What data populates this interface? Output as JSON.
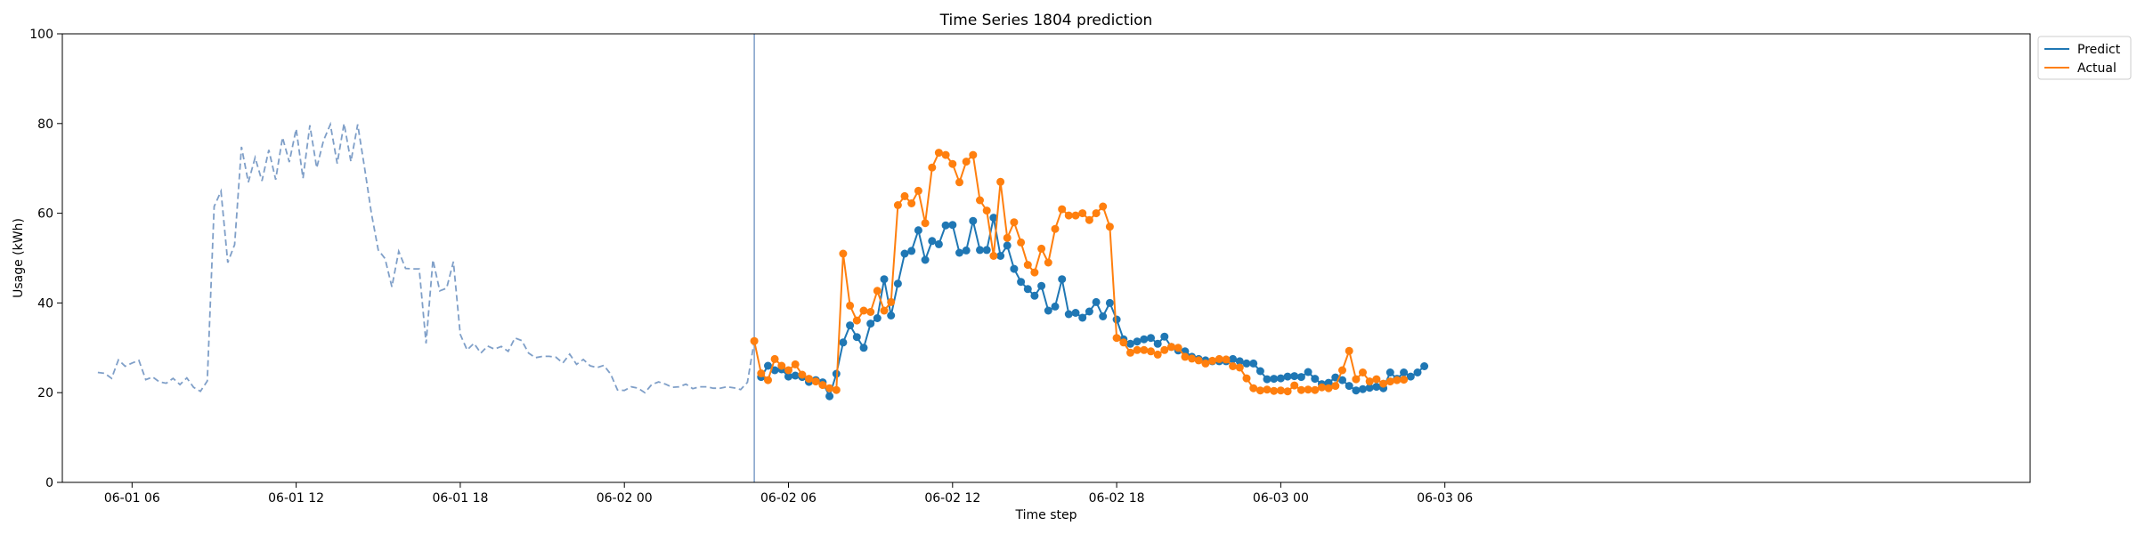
{
  "chart_data": {
    "type": "line",
    "title": "Time Series 1804 prediction",
    "xlabel": "Time step",
    "ylabel": "Usage (kWh)",
    "x_unit": "hours since 06-01 00:00",
    "xlim": [
      3.45,
      75.4
    ],
    "ylim": [
      0,
      100
    ],
    "yticks": [
      0,
      20,
      40,
      60,
      80,
      100
    ],
    "xticks": [
      {
        "label": "06-01 06",
        "value": 6
      },
      {
        "label": "06-01 12",
        "value": 12
      },
      {
        "label": "06-01 18",
        "value": 18
      },
      {
        "label": "06-02 00",
        "value": 24
      },
      {
        "label": "06-02 06",
        "value": 30
      },
      {
        "label": "06-02 12",
        "value": 36
      },
      {
        "label": "06-02 18",
        "value": 42
      },
      {
        "label": "06-03 00",
        "value": 48
      },
      {
        "label": "06-03 06",
        "value": 54
      }
    ],
    "forecast_start": 28.75,
    "legend_position": "upper-right-outside",
    "colors": {
      "history": "#7f9fc8",
      "predict": "#1f77b4",
      "actual": "#ff7f0e",
      "vline": "#7f9fc8"
    },
    "history": {
      "x_start": 4.75,
      "step": 0.25,
      "values": [
        24.5,
        24.3,
        23.2,
        27.3,
        25.9,
        26.6,
        27.2,
        22.9,
        23.5,
        22.4,
        22.1,
        23.2,
        21.8,
        23.3,
        21.2,
        20.3,
        22.6,
        61.5,
        64.9,
        49.0,
        53.0,
        74.8,
        66.9,
        72.4,
        67.2,
        74.1,
        67.5,
        76.9,
        71.4,
        78.8,
        67.8,
        79.6,
        70.1,
        76.2,
        79.8,
        71.1,
        80.0,
        71.5,
        79.8,
        70.2,
        60.0,
        51.8,
        49.9,
        43.6,
        51.5,
        47.7,
        47.6,
        47.6,
        31.0,
        49.6,
        42.7,
        43.3,
        49.2,
        33.0,
        29.5,
        31.0,
        28.8,
        30.4,
        29.7,
        30.3,
        29.2,
        32.2,
        31.6,
        28.8,
        27.8,
        28.1,
        28.1,
        27.9,
        26.6,
        28.6,
        26.3,
        27.4,
        26.0,
        25.6,
        26.1,
        24.1,
        20.6,
        20.5,
        21.3,
        21.0,
        20.0,
        21.8,
        22.4,
        21.9,
        21.2,
        21.3,
        21.9,
        20.9,
        21.3,
        21.3,
        21.0,
        21.0,
        21.3,
        21.1,
        20.7,
        22.3,
        31.5
      ]
    },
    "series": [
      {
        "name": "Predict",
        "x_start": 29.0,
        "step": 0.25,
        "values": [
          23.5,
          26.0,
          25.0,
          25.2,
          23.6,
          23.8,
          23.5,
          22.4,
          22.8,
          22.3,
          19.2,
          24.2,
          31.2,
          35.0,
          32.4,
          30.0,
          35.4,
          36.6,
          45.3,
          37.2,
          44.3,
          51.0,
          51.6,
          56.2,
          49.6,
          53.8,
          53.1,
          57.3,
          57.4,
          51.2,
          51.7,
          58.3,
          51.8,
          51.8,
          59.0,
          50.5,
          52.8,
          47.6,
          44.7,
          43.1,
          41.6,
          43.8,
          38.3,
          39.2,
          45.3,
          37.5,
          37.8,
          36.7,
          38.1,
          40.2,
          37.0,
          40.0,
          36.3,
          31.9,
          30.9,
          31.4,
          31.9,
          32.2,
          30.9,
          32.5,
          30.2,
          29.4,
          29.2,
          28.0,
          27.5,
          27.2,
          27.0,
          27.0,
          27.0,
          27.5,
          27.0,
          26.5,
          26.5,
          24.8,
          23.0,
          23.1,
          23.2,
          23.6,
          23.7,
          23.5,
          24.6,
          23.1,
          21.9,
          22.2,
          23.4,
          22.8,
          21.5,
          20.5,
          20.8,
          21.1,
          21.3,
          21.0,
          24.5,
          23.1,
          24.5,
          23.6,
          24.5,
          25.9
        ]
      },
      {
        "name": "Actual",
        "x_start": 28.75,
        "step": 0.25,
        "values": [
          31.5,
          24.3,
          22.8,
          27.5,
          26.0,
          25.0,
          26.3,
          24.0,
          23.1,
          22.5,
          21.7,
          21.0,
          20.6,
          51.0,
          39.4,
          36.1,
          38.3,
          38.0,
          42.7,
          38.3,
          40.2,
          61.8,
          63.8,
          62.2,
          65.0,
          57.8,
          70.2,
          73.5,
          73.0,
          71.0,
          66.9,
          71.5,
          73.0,
          62.9,
          60.6,
          50.5,
          67.0,
          54.5,
          58.0,
          53.5,
          48.5,
          46.8,
          52.1,
          49.0,
          56.5,
          60.9,
          59.5,
          59.5,
          60.0,
          58.5,
          60.0,
          61.5,
          57.0,
          32.2,
          31.2,
          28.9,
          29.5,
          29.5,
          29.2,
          28.5,
          29.5,
          30.2,
          30.0,
          28.0,
          27.6,
          27.2,
          26.5,
          27.1,
          27.5,
          27.4,
          25.9,
          25.6,
          23.2,
          21.0,
          20.5,
          20.7,
          20.4,
          20.5,
          20.3,
          21.6,
          20.6,
          20.7,
          20.6,
          21.2,
          21.0,
          21.5,
          25.0,
          29.3,
          23.0,
          24.5,
          22.5,
          23.0,
          22.0,
          22.5,
          22.8,
          22.9
        ]
      }
    ]
  }
}
